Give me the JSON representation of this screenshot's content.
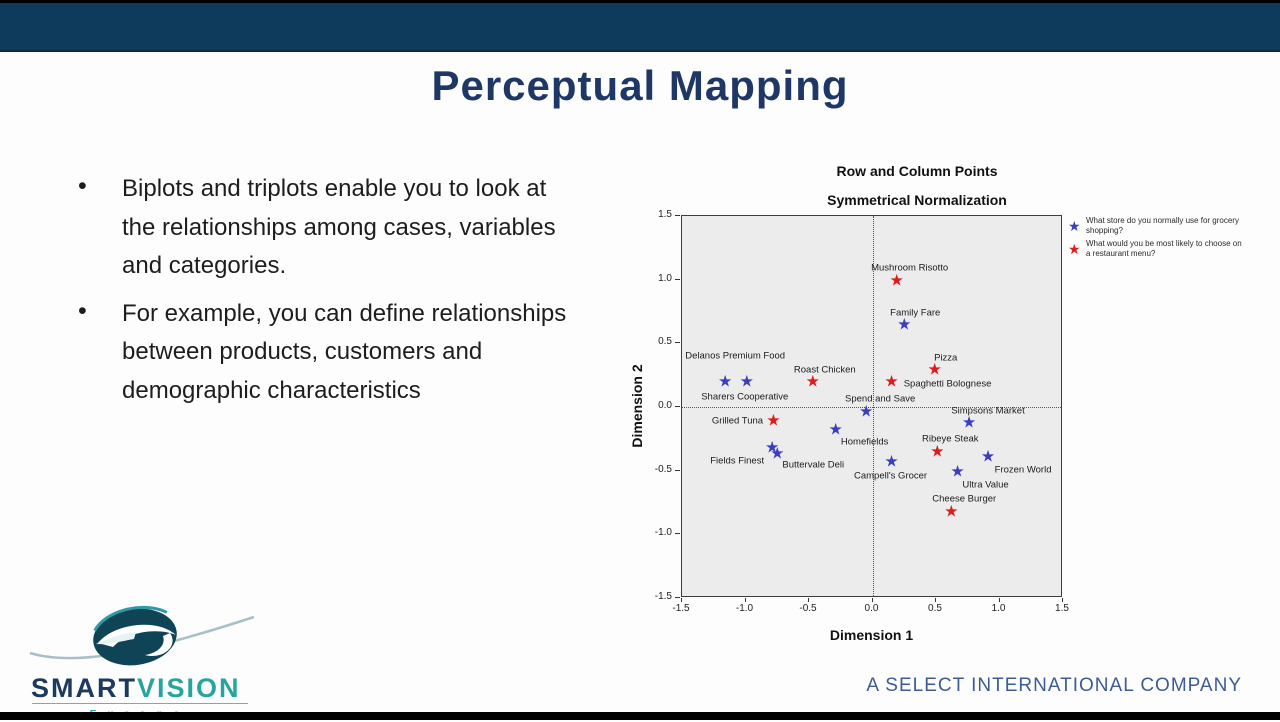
{
  "slide": {
    "title": "Perceptual Mapping",
    "bullet_glyph": "•",
    "bullets": [
      "Biplots and triplots enable you to look at the relationships among cases, variables and categories.",
      "For example, you can define relationships between products, customers and demographic characteristics"
    ],
    "footer": "A SELECT INTERNATIONAL COMPANY"
  },
  "logo": {
    "smart": "SMART",
    "vision": "VISION",
    "europe": "Europe"
  },
  "colors": {
    "header_bar": "#0e3a5c",
    "title_text": "#1f3765",
    "star_blue": "#3a3fc1",
    "star_red": "#dd1d1a",
    "footer_text": "#3d5c94",
    "logo_teal": "#26a59e",
    "logo_navy": "#1c3a60",
    "plot_background": "#ececec"
  },
  "chart_data": {
    "type": "scatter",
    "title": "Row and Column Points",
    "subtitle": "Symmetrical Normalization",
    "xlabel": "Dimension 1",
    "ylabel": "Dimension 2",
    "xlim": [
      -1.5,
      1.5
    ],
    "ylim": [
      -1.5,
      1.5
    ],
    "xticks": [
      -1.5,
      -1.0,
      -0.5,
      0.0,
      0.5,
      1.0,
      1.5
    ],
    "xtick_labels": [
      "-1.5",
      "-1.0",
      "-0.5",
      "0.0",
      "0.5",
      "1.0",
      "1.5"
    ],
    "yticks": [
      1.5,
      1.0,
      0.5,
      0.0,
      -0.5,
      -1.0,
      -1.5
    ],
    "ytick_labels": [
      "1.5",
      "1.0",
      "0.5",
      "0.0",
      "-0.5",
      "-1.0",
      "-1.5"
    ],
    "grid": false,
    "reference_lines": {
      "vertical_x": 0.0,
      "horizontal_y": 0.0
    },
    "marker": "star",
    "star_glyph": "★",
    "legend_position": "top-right",
    "series": [
      {
        "name": "What store do you normally use for grocery shopping?",
        "color": "#3a3fc1",
        "points": [
          {
            "name": "Delanos Premium Food",
            "x": -1.16,
            "y": 0.19,
            "dx": 10,
            "dy": -27
          },
          {
            "name": "Sharers Cooperative",
            "x": -0.99,
            "y": 0.19,
            "dx": -2,
            "dy": 14
          },
          {
            "name": "Family Fare",
            "x": 0.25,
            "y": 0.64,
            "dx": 11,
            "dy": -13
          },
          {
            "name": "Spend and Save",
            "x": -0.05,
            "y": -0.05,
            "dx": 14,
            "dy": -14
          },
          {
            "name": "Homefields",
            "x": -0.29,
            "y": -0.19,
            "dx": 29,
            "dy": 11
          },
          {
            "name": "Simpsons Market",
            "x": 0.76,
            "y": -0.13,
            "dx": 19,
            "dy": -13
          },
          {
            "name": "Fields Finest",
            "x": -0.79,
            "y": -0.33,
            "dx": -35,
            "dy": 12
          },
          {
            "name": "Buttervale Deli",
            "x": -0.75,
            "y": -0.38,
            "dx": 36,
            "dy": 10
          },
          {
            "name": "Campell's Grocer",
            "x": 0.15,
            "y": -0.44,
            "dx": -1,
            "dy": 13
          },
          {
            "name": "Frozen World",
            "x": 0.91,
            "y": -0.4,
            "dx": 35,
            "dy": 12
          },
          {
            "name": "Ultra Value",
            "x": 0.67,
            "y": -0.52,
            "dx": 28,
            "dy": 12
          }
        ]
      },
      {
        "name": "What would you be most likely to choose on a restaurant menu?",
        "color": "#dd1d1a",
        "points": [
          {
            "name": "Mushroom Risotto",
            "x": 0.19,
            "y": 0.98,
            "dx": 13,
            "dy": -14
          },
          {
            "name": "Roast Chicken",
            "x": -0.47,
            "y": 0.19,
            "dx": 12,
            "dy": -13
          },
          {
            "name": "Pizza",
            "x": 0.49,
            "y": 0.28,
            "dx": 11,
            "dy": -13
          },
          {
            "name": "Spaghetti Bolognese",
            "x": 0.15,
            "y": 0.19,
            "dx": 56,
            "dy": 1
          },
          {
            "name": "Grilled Tuna",
            "x": -0.78,
            "y": -0.12,
            "dx": -36,
            "dy": -1
          },
          {
            "name": "Ribeye Steak",
            "x": 0.51,
            "y": -0.36,
            "dx": 13,
            "dy": -14
          },
          {
            "name": "Cheese Burger",
            "x": 0.62,
            "y": -0.83,
            "dx": 13,
            "dy": -14
          }
        ]
      }
    ]
  }
}
